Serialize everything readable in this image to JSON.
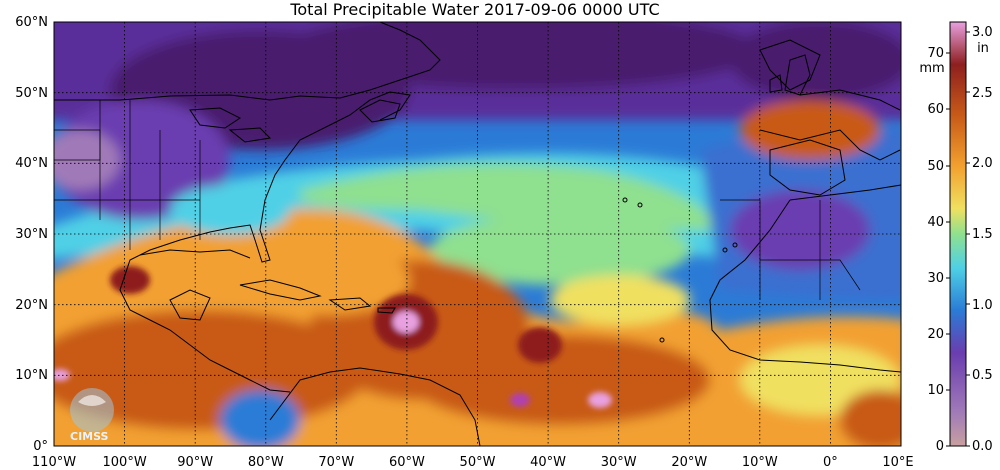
{
  "title": "Total Precipitable Water  2017-09-06 0000 UTC",
  "map": {
    "lat_labels": [
      "60°N",
      "50°N",
      "40°N",
      "30°N",
      "20°N",
      "10°N",
      "0°"
    ],
    "lon_labels": [
      "110°W",
      "100°W",
      "90°W",
      "80°W",
      "70°W",
      "60°W",
      "50°W",
      "40°W",
      "30°W",
      "20°W",
      "10°W",
      "0°",
      "10°E"
    ],
    "extent": {
      "lon_min": -110,
      "lon_max": 10,
      "lat_min": 0,
      "lat_max": 60
    },
    "grid_lines": "dotted"
  },
  "colorbar": {
    "mm_ticks": [
      "0",
      "10",
      "20",
      "30",
      "40",
      "50",
      "60",
      "70"
    ],
    "mm_unit": "mm",
    "in_ticks": [
      "0.0",
      "0.5",
      "1.0",
      "1.5",
      "2.0",
      "2.5",
      "3.0"
    ],
    "in_unit": "in",
    "range_mm": [
      0,
      76
    ]
  },
  "logo": {
    "text": "CIMSS"
  },
  "colors": {
    "dry": "#4a1a6e",
    "low": "#6a3db0",
    "blue": "#2b7bd6",
    "cyan": "#4fd0e6",
    "green": "#8fe08f",
    "yellow": "#f0e060",
    "orange": "#f2a030",
    "dark_orange": "#c85a18",
    "red": "#8e1f1f",
    "pink": "#e8a0e0"
  }
}
